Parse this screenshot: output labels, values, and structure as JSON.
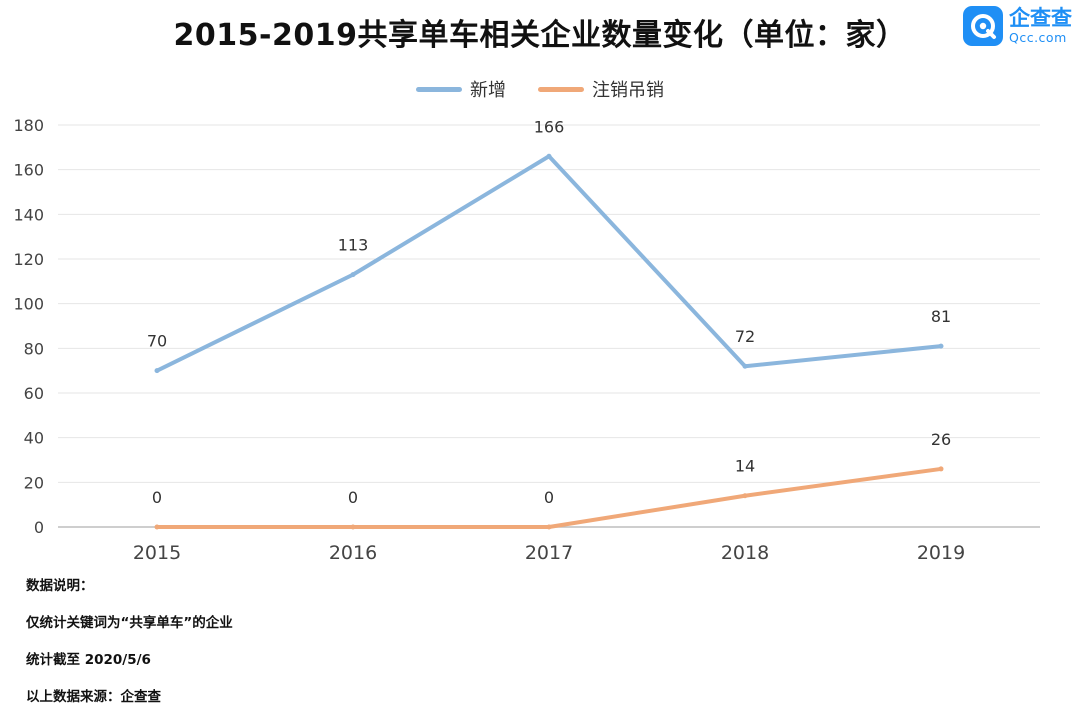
{
  "header": {
    "title": "2015-2019共享单车相关企业数量变化（单位：家）",
    "logo_name": "企查查",
    "logo_domain": "Qcc.com",
    "logo_mark_text": "Q"
  },
  "legend": [
    {
      "label": "新增",
      "color": "#8bb6dd"
    },
    {
      "label": "注销吊销",
      "color": "#f0a878"
    }
  ],
  "chart_data": {
    "type": "line",
    "title": "2015-2019共享单车相关企业数量变化（单位：家）",
    "categories": [
      "2015",
      "2016",
      "2017",
      "2018",
      "2019"
    ],
    "series": [
      {
        "name": "新增",
        "values": [
          70,
          113,
          166,
          72,
          81
        ],
        "color": "#8bb6dd"
      },
      {
        "name": "注销吊销",
        "values": [
          0,
          0,
          0,
          14,
          26
        ],
        "color": "#f0a878"
      }
    ],
    "y_ticks": [
      0,
      20,
      40,
      60,
      80,
      100,
      120,
      140,
      160,
      180
    ],
    "ylim": [
      0,
      180
    ],
    "grid": true,
    "legend_position": "top-center"
  },
  "notes": {
    "heading": "数据说明：",
    "lines": [
      "仅统计关键词为“共享单车”的企业",
      "统计截至 2020/5/6",
      "以上数据来源：企查查"
    ]
  }
}
